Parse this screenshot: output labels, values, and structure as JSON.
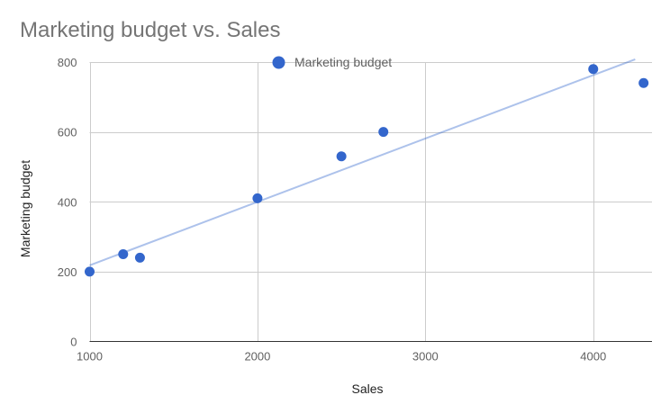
{
  "chart_data": {
    "type": "scatter",
    "title": "Marketing budget vs. Sales",
    "xlabel": "Sales",
    "ylabel": "Marketing budget",
    "xlim": [
      1000,
      4350
    ],
    "ylim": [
      0,
      800
    ],
    "x_ticks": [
      1000,
      2000,
      3000,
      4000
    ],
    "y_ticks": [
      0,
      200,
      400,
      600,
      800
    ],
    "grid": true,
    "legend_position": "top",
    "series": [
      {
        "name": "Marketing budget",
        "color": "#3366cc",
        "x": [
          1000,
          1200,
          1300,
          2000,
          2500,
          2750,
          4000,
          4300
        ],
        "y": [
          200,
          250,
          240,
          410,
          530,
          600,
          780,
          740
        ]
      }
    ],
    "trendline": {
      "type": "linear",
      "color": "#3366cc",
      "x": [
        1000,
        4250
      ],
      "y": [
        218,
        808
      ]
    }
  }
}
